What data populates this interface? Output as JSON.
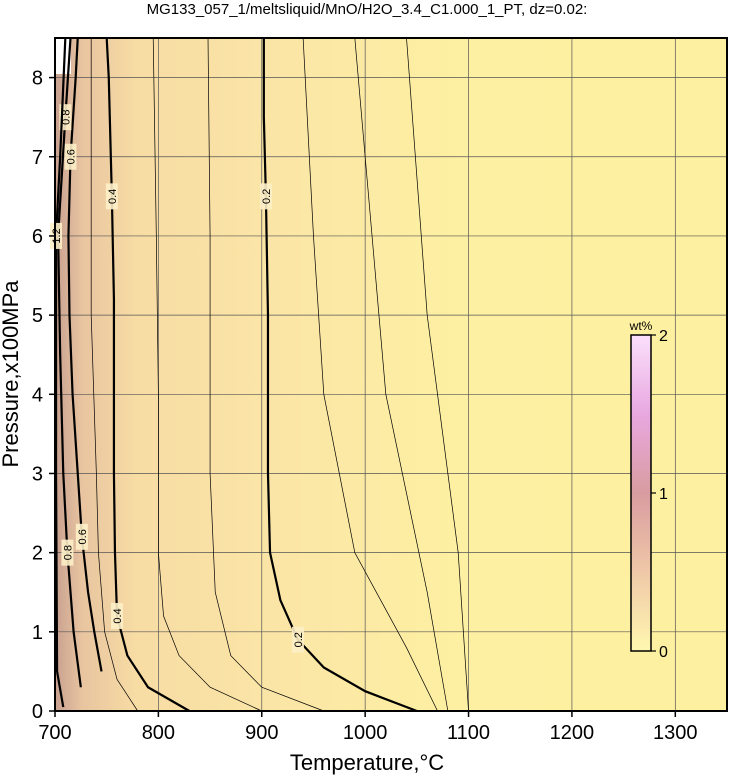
{
  "chart_data": {
    "type": "contour",
    "title": "MG133_057_1/meltsliquid/MnO/H2O_3.4_C1.000_1_PT, dz=0.02:",
    "x_label": "Temperature,°C",
    "y_label": "Pressure,x100MPa",
    "xlim": [
      700,
      1350
    ],
    "ylim": [
      0,
      8.5
    ],
    "xticks": [
      700,
      800,
      900,
      1000,
      1100,
      1200,
      1300
    ],
    "yticks": [
      0,
      1,
      2,
      3,
      4,
      5,
      6,
      7,
      8
    ],
    "grid": true,
    "contours": [
      {
        "level": 0.2,
        "labeled": true,
        "x": [
          1050,
          1000,
          960,
          935,
          918,
          908,
          906,
          906,
          904,
          902,
          902
        ],
        "y": [
          0,
          0.25,
          0.55,
          0.9,
          1.4,
          2,
          3,
          5,
          6.5,
          7.5,
          8.5
        ]
      },
      {
        "level": 0.4,
        "labeled": true,
        "x": [
          830,
          790,
          770,
          760,
          758,
          757,
          757,
          757,
          755,
          752,
          750
        ],
        "y": [
          0,
          0.3,
          0.7,
          1.2,
          2,
          3,
          4,
          5.2,
          6.5,
          8,
          8.5
        ]
      },
      {
        "level": 0.6,
        "labeled": true,
        "x": [
          745,
          738,
          732,
          726,
          722,
          717,
          714,
          713,
          715,
          720,
          722
        ],
        "y": [
          0.5,
          1,
          1.5,
          2.2,
          3,
          4,
          5,
          6,
          7,
          8,
          8.5
        ]
      },
      {
        "level": 0.8,
        "labeled": true,
        "x": [
          725,
          718,
          712,
          708,
          705,
          703,
          710,
          715
        ],
        "y": [
          0.3,
          1,
          2,
          3,
          4.5,
          6,
          7.5,
          8.5
        ]
      },
      {
        "level": 1.2,
        "labeled": true,
        "x": [
          708,
          702,
          701,
          701,
          705,
          710
        ],
        "y": [
          0.05,
          0.5,
          3,
          6,
          7,
          8.5
        ]
      },
      {
        "level": 0.5,
        "labeled": false,
        "x": [
          780,
          760,
          748,
          742,
          740,
          735,
          735
        ],
        "y": [
          0,
          0.4,
          1,
          2,
          3,
          5,
          8.5
        ]
      },
      {
        "level": 0.3,
        "labeled": false,
        "x": [
          900,
          850,
          820,
          805,
          800,
          800,
          798,
          795
        ],
        "y": [
          0,
          0.3,
          0.7,
          1.2,
          2,
          4,
          6,
          8.5
        ]
      },
      {
        "level": 0.25,
        "labeled": false,
        "x": [
          960,
          900,
          870,
          855,
          850,
          850,
          848
        ],
        "y": [
          0,
          0.3,
          0.7,
          1.5,
          3,
          6,
          8.5
        ]
      },
      {
        "level": 0.18,
        "labeled": false,
        "x": [
          1070,
          1040,
          990,
          960,
          950,
          940
        ],
        "y": [
          0,
          0.8,
          2,
          4,
          6,
          8.5
        ]
      },
      {
        "level": 0.16,
        "labeled": false,
        "x": [
          1080,
          1060,
          1020,
          990
        ],
        "y": [
          0,
          1.5,
          4,
          8.5
        ]
      },
      {
        "level": 0.14,
        "labeled": false,
        "x": [
          1100,
          1090,
          1060,
          1040
        ],
        "y": [
          0,
          2,
          5,
          8.5
        ]
      }
    ],
    "colorbar": {
      "label": "wt%",
      "lim": [
        0,
        2
      ],
      "ticks": [
        0,
        1,
        2
      ],
      "colors": [
        "#fff8b0",
        "#f0c8a8",
        "#d89ca0",
        "#e8a8e0",
        "#fbe0fb"
      ]
    }
  }
}
